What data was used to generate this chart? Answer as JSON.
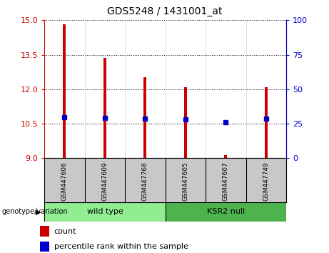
{
  "title": "GDS5248 / 1431001_at",
  "samples": [
    "GSM447606",
    "GSM447609",
    "GSM447768",
    "GSM447605",
    "GSM447607",
    "GSM447749"
  ],
  "bar_values": [
    14.82,
    13.35,
    12.53,
    12.08,
    9.12,
    12.1
  ],
  "bar_base": 9.0,
  "percentile_values": [
    10.78,
    10.75,
    10.72,
    10.68,
    10.55,
    10.73
  ],
  "ylim_left": [
    9,
    15
  ],
  "ylim_right": [
    0,
    100
  ],
  "yticks_left": [
    9,
    10.5,
    12,
    13.5,
    15
  ],
  "yticks_right": [
    0,
    25,
    50,
    75,
    100
  ],
  "bar_color": "#cc0000",
  "percentile_color": "#0000cc",
  "wild_type_indices": [
    0,
    1,
    2
  ],
  "ksr2_null_indices": [
    3,
    4,
    5
  ],
  "wild_type_label": "wild type",
  "ksr2_null_label": "KSR2 null",
  "wild_type_color": "#90ee90",
  "ksr2_null_color": "#4db34d",
  "tick_label_area_color": "#c8c8c8",
  "legend_count_label": "count",
  "legend_percentile_label": "percentile rank within the sample",
  "genotype_label": "genotype/variation",
  "bar_width": 0.07,
  "plot_bg": "#ffffff",
  "left_tick_color": "#cc0000",
  "right_tick_color": "#0000cc",
  "title_fontsize": 10,
  "tick_fontsize": 8,
  "label_fontsize": 8
}
